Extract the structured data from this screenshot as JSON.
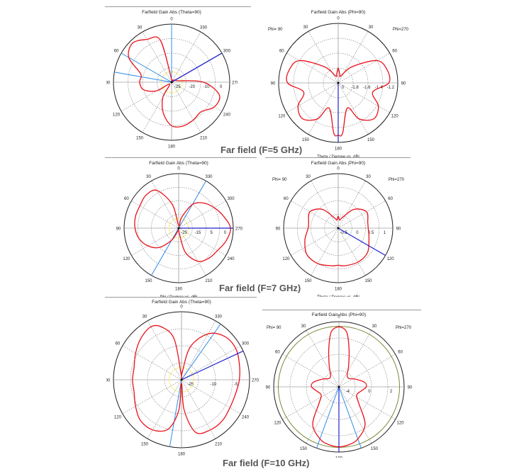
{
  "captions": {
    "row1": "Far field (F=5 GHz)",
    "row2": "Far field (F=7 GHz)",
    "row3": "Far field (F=10 GHz)"
  },
  "colors": {
    "curve": "#e8121b",
    "axis": "#2222cc",
    "beam": "#2a8ce8",
    "grid": "#777777",
    "yellow": "#f2e64a",
    "olive": "#7a8a3a"
  },
  "chart_data": [
    {
      "id": "p1",
      "type": "polar",
      "title": "Farfield Gain Abs (Theta=90)",
      "xlabel": "Phi / Degree vs. dBi",
      "angle_labels": [
        "0",
        "30",
        "60",
        "90",
        "120",
        "150",
        "180",
        "210",
        "240",
        "270",
        "300",
        "330"
      ],
      "radial_labels": [
        "-25",
        "-20",
        "-10",
        "0"
      ],
      "side_labels": [],
      "series": [
        {
          "angle": [
            0,
            15,
            30,
            45,
            60,
            75,
            90,
            105,
            120,
            135,
            150,
            165,
            180,
            195,
            210,
            225,
            240,
            255,
            270,
            285,
            300,
            315,
            330,
            345
          ],
          "r": [
            0.05,
            0.75,
            0.85,
            0.95,
            0.85,
            0.55,
            0.55,
            0.5,
            0.3,
            0.05,
            0.3,
            0.55,
            0.75,
            0.78,
            0.75,
            0.72,
            0.85,
            0.85,
            0.55,
            0.1,
            0.08,
            0.05,
            0.04,
            0.04
          ]
        }
      ]
    },
    {
      "id": "p2",
      "type": "polar",
      "title": "Farfield Gain Abs (Phi=90)",
      "xlabel": "Theta / Degree vs. dBi",
      "angle_labels": [
        "0",
        "30",
        "60",
        "90",
        "120",
        "150",
        "180",
        "150",
        "120",
        "90",
        "60",
        "30"
      ],
      "radial_labels": [
        "0",
        "-1.8",
        "-1.6",
        "-1.4",
        "-1.2"
      ],
      "side_labels": [
        "Phi= 90",
        "Phi=270"
      ],
      "series": [
        {
          "angle": [
            0,
            10,
            20,
            40,
            60,
            75,
            90,
            105,
            120,
            135,
            150,
            160,
            175,
            180,
            185,
            200,
            210,
            225,
            240,
            255,
            270,
            285,
            300,
            320,
            340,
            350
          ],
          "r": [
            0.25,
            0.15,
            0.12,
            0.35,
            0.75,
            0.85,
            0.85,
            0.6,
            0.78,
            0.85,
            0.7,
            0.45,
            0.85,
            0.88,
            0.85,
            0.45,
            0.7,
            0.85,
            0.78,
            0.6,
            0.85,
            0.85,
            0.75,
            0.35,
            0.12,
            0.15
          ]
        }
      ]
    },
    {
      "id": "p3",
      "type": "polar",
      "title": "Farfield Gain Abs (Theta=90)",
      "xlabel": "Phi / Degree vs. dBi",
      "angle_labels": [
        "0",
        "30",
        "60",
        "90",
        "120",
        "150",
        "180",
        "210",
        "240",
        "270",
        "300",
        "330"
      ],
      "radial_labels": [
        "-25",
        "-15",
        "5",
        "0"
      ],
      "side_labels": [],
      "series": [
        {
          "angle": [
            0,
            15,
            30,
            45,
            60,
            75,
            90,
            105,
            120,
            135,
            150,
            165,
            180,
            195,
            210,
            225,
            240,
            255,
            270,
            285,
            300,
            315,
            330,
            345
          ],
          "r": [
            0.05,
            0.45,
            0.8,
            0.85,
            0.82,
            0.82,
            0.8,
            0.75,
            0.65,
            0.5,
            0.25,
            0.05,
            0.05,
            0.45,
            0.7,
            0.78,
            0.82,
            0.9,
            0.95,
            0.85,
            0.75,
            0.65,
            0.5,
            0.2
          ]
        }
      ]
    },
    {
      "id": "p4",
      "type": "polar",
      "title": "Farfield Gain Abs (Phi=90)",
      "xlabel": "Theta / Degree vs. dBi",
      "angle_labels": [
        "0",
        "30",
        "60",
        "90",
        "120",
        "150",
        "180",
        "150",
        "120",
        "90",
        "60",
        "30"
      ],
      "radial_labels": [
        "-0.5",
        "0",
        "0.5",
        "1"
      ],
      "side_labels": [
        "Phi= 90",
        "Phi=270"
      ],
      "series": [
        {
          "angle": [
            0,
            10,
            20,
            40,
            60,
            80,
            90,
            110,
            130,
            150,
            170,
            180,
            190,
            210,
            230,
            250,
            270,
            280,
            300,
            320,
            340,
            350
          ],
          "r": [
            0.22,
            0.15,
            0.2,
            0.45,
            0.6,
            0.55,
            0.55,
            0.65,
            0.75,
            0.75,
            0.7,
            0.68,
            0.7,
            0.72,
            0.7,
            0.6,
            0.55,
            0.55,
            0.6,
            0.45,
            0.2,
            0.15
          ]
        }
      ]
    },
    {
      "id": "p5",
      "type": "polar",
      "title": "Farfield Gain Abs (Theta=90)",
      "xlabel": "Phi / Degree vs. dBi",
      "angle_labels": [
        "0",
        "30",
        "60",
        "90",
        "120",
        "150",
        "180",
        "210",
        "240",
        "270",
        "300",
        "330"
      ],
      "radial_labels": [
        "-25",
        "-10",
        "-5"
      ],
      "side_labels": [],
      "series": [
        {
          "angle": [
            0,
            10,
            20,
            30,
            45,
            60,
            75,
            90,
            105,
            120,
            135,
            150,
            165,
            175,
            180,
            185,
            195,
            210,
            225,
            240,
            255,
            270,
            285,
            300,
            315,
            330,
            345,
            355
          ],
          "r": [
            0.05,
            0.6,
            0.82,
            0.9,
            0.85,
            0.78,
            0.72,
            0.72,
            0.72,
            0.78,
            0.85,
            0.85,
            0.75,
            0.45,
            0.05,
            0.45,
            0.8,
            0.85,
            0.85,
            0.82,
            0.82,
            0.85,
            0.88,
            0.92,
            0.9,
            0.78,
            0.5,
            0.1
          ]
        }
      ]
    },
    {
      "id": "p6",
      "type": "polar",
      "title": "Farfield Gain Abs (Phi=90)",
      "xlabel": "Theta / Degree vs. dBi",
      "angle_labels": [
        "0",
        "30",
        "60",
        "90",
        "120",
        "150",
        "180",
        "150",
        "120",
        "90",
        "60",
        "30"
      ],
      "radial_labels": [
        "-4",
        "0",
        "2"
      ],
      "side_labels": [
        "Phi= 90",
        "Phi=270"
      ],
      "series": [
        {
          "angle": [
            0,
            8,
            15,
            25,
            35,
            50,
            65,
            80,
            90,
            100,
            115,
            130,
            145,
            160,
            170,
            180,
            190,
            200,
            215,
            230,
            245,
            260,
            270,
            280,
            295,
            310,
            325,
            335,
            345,
            352
          ],
          "r": [
            0.92,
            0.85,
            0.6,
            0.35,
            0.22,
            0.2,
            0.28,
            0.4,
            0.42,
            0.35,
            0.3,
            0.4,
            0.7,
            0.85,
            0.9,
            0.92,
            0.9,
            0.85,
            0.7,
            0.4,
            0.3,
            0.35,
            0.42,
            0.4,
            0.28,
            0.2,
            0.22,
            0.35,
            0.6,
            0.85
          ]
        }
      ]
    }
  ]
}
